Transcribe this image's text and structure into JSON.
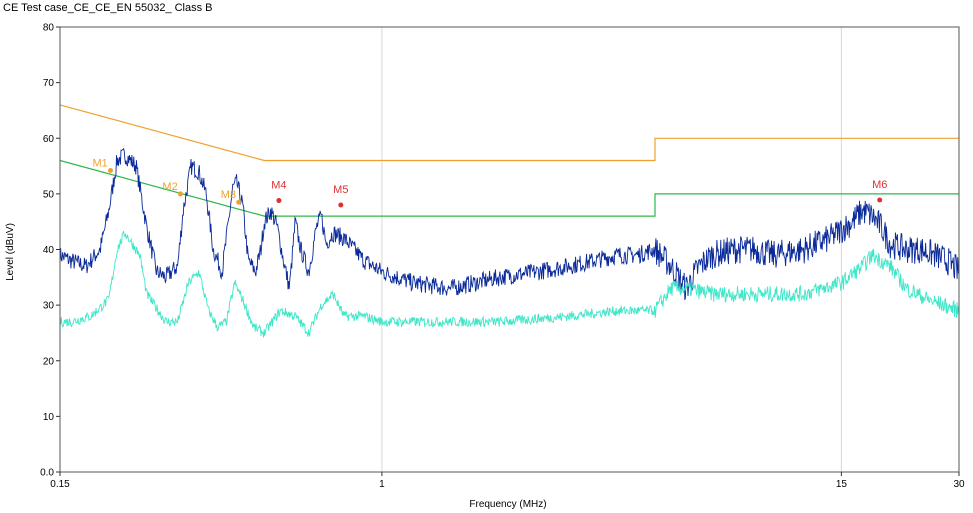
{
  "chart_data": {
    "type": "line",
    "title": "CE Test case_CE_CE_EN 55032_ Class B",
    "xlabel": "Frequency (MHz)",
    "ylabel": "Level (dBuV)",
    "xscale": "log",
    "xlim": [
      0.15,
      30
    ],
    "ylim": [
      0,
      80
    ],
    "x_ticks": [
      0.15,
      1,
      15,
      30
    ],
    "x_tick_labels": [
      "0.15",
      "1",
      "15",
      "30"
    ],
    "y_ticks": [
      0,
      10,
      20,
      30,
      40,
      50,
      60,
      70,
      80
    ],
    "y_tick_labels": [
      "0.0",
      "10",
      "20",
      "30",
      "40",
      "50",
      "60",
      "70",
      "80"
    ],
    "grid": "vertical at 1 and 15",
    "colors": {
      "qp_limit": "#f0a030",
      "avg_limit": "#2db84a",
      "peak_trace": "#0a2a9a",
      "avg_trace": "#3fe6c8",
      "marker_red": "#e03030",
      "marker_orange": "#f0a030",
      "grid": "#d8d8d8"
    },
    "series": [
      {
        "key": "qp_limit",
        "x": [
          0.15,
          0.5,
          0.5,
          5,
          5,
          30
        ],
        "y": [
          66,
          56,
          56,
          56,
          60,
          60
        ]
      },
      {
        "key": "avg_limit",
        "x": [
          0.15,
          0.5,
          0.5,
          5,
          5,
          30
        ],
        "y": [
          56,
          46,
          46,
          46,
          50,
          50
        ]
      },
      {
        "key": "peak_trace",
        "x": [
          0.15,
          0.16,
          0.175,
          0.19,
          0.2,
          0.21,
          0.22,
          0.235,
          0.25,
          0.265,
          0.28,
          0.3,
          0.31,
          0.325,
          0.34,
          0.355,
          0.37,
          0.39,
          0.405,
          0.415,
          0.425,
          0.44,
          0.455,
          0.475,
          0.49,
          0.5,
          0.52,
          0.54,
          0.56,
          0.58,
          0.6,
          0.62,
          0.65,
          0.68,
          0.7,
          0.72,
          0.75,
          0.8,
          0.85,
          0.9,
          0.95,
          1,
          1.2,
          1.5,
          2,
          2.5,
          3,
          3.5,
          4,
          4.5,
          5,
          5.5,
          6,
          6.5,
          7,
          8,
          9,
          10,
          12,
          14,
          16,
          17,
          18,
          19,
          20,
          22,
          24,
          26,
          28,
          30
        ],
        "y": [
          39,
          38,
          37,
          40,
          47,
          56,
          57,
          55,
          44,
          36,
          35,
          37,
          47,
          55,
          54,
          50,
          40,
          36,
          45,
          51,
          52,
          48,
          38,
          36,
          40,
          45,
          47,
          44,
          38,
          33,
          45,
          40,
          36,
          44,
          46,
          41,
          43,
          42,
          40,
          38,
          37,
          36,
          34,
          33,
          35,
          36,
          37,
          38,
          39,
          39,
          40,
          37,
          33,
          37,
          39,
          40,
          40,
          39,
          40,
          42,
          45,
          47,
          46,
          44,
          41,
          40,
          40,
          39,
          38,
          36
        ]
      },
      {
        "key": "avg_trace",
        "x": [
          0.15,
          0.16,
          0.18,
          0.2,
          0.21,
          0.22,
          0.24,
          0.25,
          0.28,
          0.3,
          0.32,
          0.34,
          0.36,
          0.38,
          0.4,
          0.42,
          0.44,
          0.47,
          0.5,
          0.55,
          0.6,
          0.65,
          0.7,
          0.75,
          0.8,
          0.9,
          1,
          1.5,
          2,
          3,
          4,
          5,
          5.5,
          6,
          7,
          8,
          10,
          12,
          15,
          17,
          18,
          20,
          22,
          25,
          30
        ],
        "y": [
          27,
          27,
          28,
          31,
          40,
          43,
          39,
          32,
          27,
          27,
          34,
          36,
          29,
          26,
          27,
          34,
          31,
          26,
          25,
          29,
          28,
          25,
          30,
          32,
          28,
          28,
          27,
          27,
          27,
          28,
          29,
          29,
          33,
          33,
          32,
          32,
          32,
          32,
          34,
          37,
          39,
          37,
          33,
          31,
          29
        ]
      }
    ],
    "markers": [
      {
        "label": "M1",
        "x": 0.202,
        "y": 54.2,
        "color": "orange"
      },
      {
        "label": "M2",
        "x": 0.305,
        "y": 50.0,
        "color": "orange"
      },
      {
        "label": "M3",
        "x": 0.43,
        "y": 48.5,
        "color": "orange"
      },
      {
        "label": "M4",
        "x": 0.545,
        "y": 48.8,
        "color": "red"
      },
      {
        "label": "M5",
        "x": 0.785,
        "y": 48.0,
        "color": "red"
      },
      {
        "label": "M6",
        "x": 18.8,
        "y": 48.9,
        "color": "red"
      }
    ]
  }
}
